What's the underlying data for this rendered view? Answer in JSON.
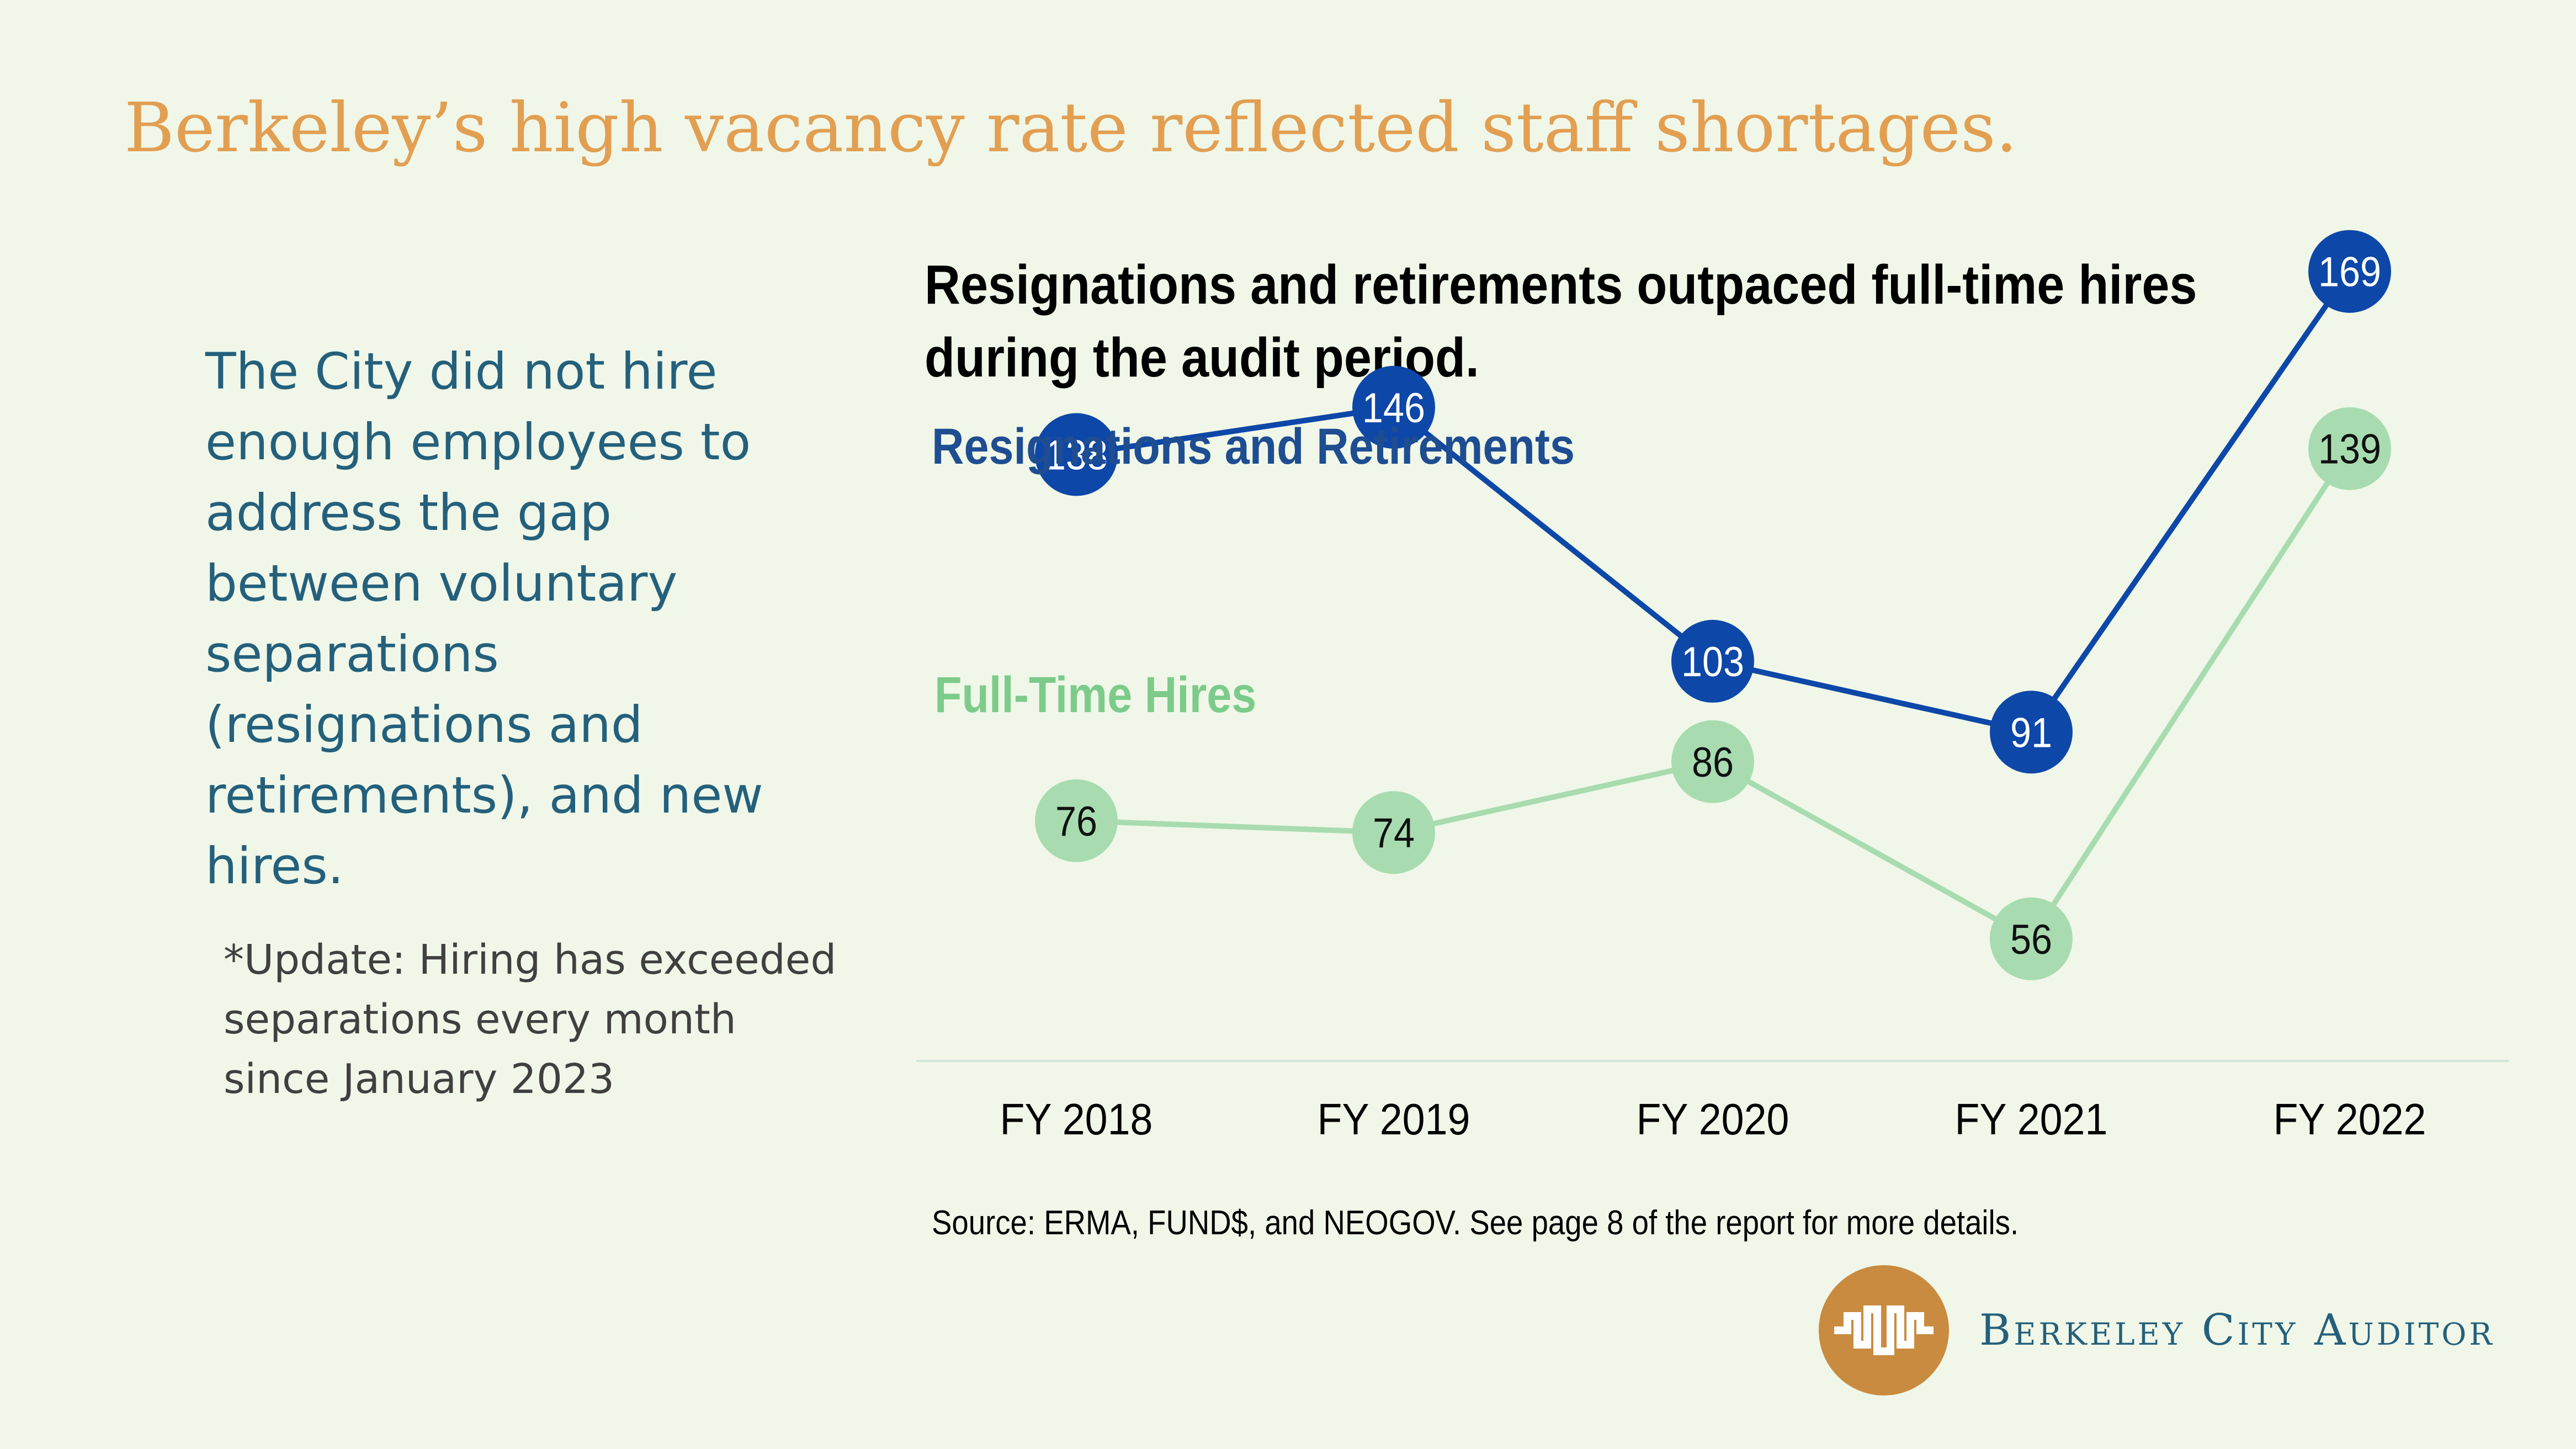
{
  "slide": {
    "title": "Berkeley’s high vacancy rate reflected staff shortages.",
    "lead_text": "The City did not hire enough employees to address the gap between voluntary separations (resignations and retirements), and new hires.",
    "update_line1": "*Update: Hiring has exceeded",
    "update_line2": "separations every month",
    "update_line3": "since January 2023"
  },
  "chart_data": {
    "type": "line",
    "title": "Resignations and retirements outpaced full-time hires during the audit period.",
    "categories": [
      "FY 2018",
      "FY 2019",
      "FY 2020",
      "FY 2021",
      "FY 2022"
    ],
    "series": [
      {
        "name": "Resignations and Retirements",
        "values": [
          138,
          146,
          103,
          91,
          169
        ],
        "color": "#0d47a8"
      },
      {
        "name": "Full-Time Hires",
        "values": [
          76,
          74,
          86,
          56,
          139
        ],
        "color": "#a8dcb0"
      }
    ],
    "ylim": [
      0,
      190
    ],
    "grid": false,
    "legend": "inline labels",
    "source": "Source: ERMA, FUND$, and NEOGOV. See page 8 of the report for more details."
  },
  "logo": {
    "text": "Berkeley City Auditor",
    "color": "#c98b40"
  }
}
